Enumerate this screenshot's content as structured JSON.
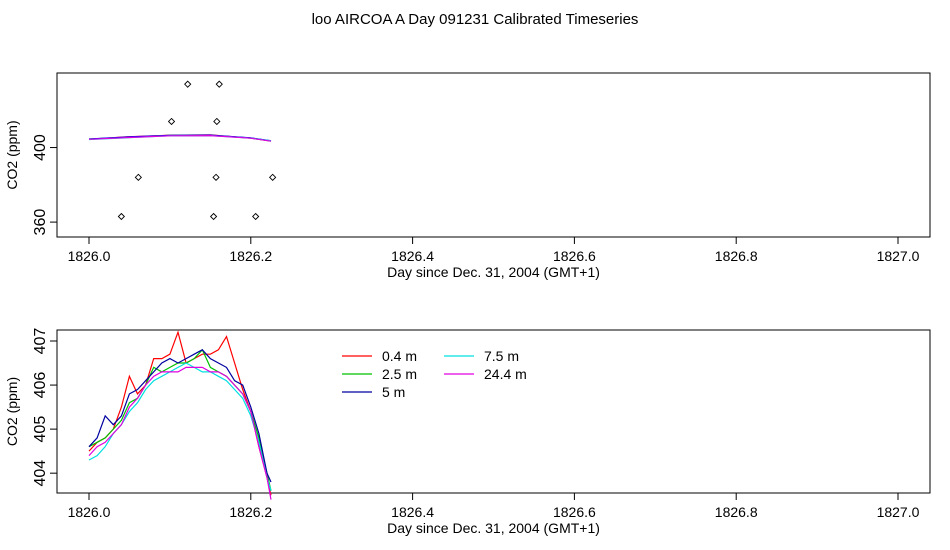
{
  "page": {
    "title": "loo AIRCOA A  Day 091231  Calibrated Timeseries"
  },
  "chart_data": [
    {
      "type": "line",
      "xlabel": "Day since Dec. 31, 2004 (GMT+1)",
      "ylabel": "CO2 (ppm)",
      "xlim": [
        1826.0,
        1827.0
      ],
      "ylim": [
        352,
        440
      ],
      "xticks": [
        "1826.0",
        "1826.2",
        "1826.4",
        "1826.6",
        "1826.8",
        "1827.0"
      ],
      "yticks": [
        "360",
        "400"
      ],
      "scatter_points": [
        {
          "x": 1826.122,
          "y": 434
        },
        {
          "x": 1826.161,
          "y": 434
        },
        {
          "x": 1826.102,
          "y": 414
        },
        {
          "x": 1826.158,
          "y": 414
        },
        {
          "x": 1826.061,
          "y": 384
        },
        {
          "x": 1826.157,
          "y": 384
        },
        {
          "x": 1826.227,
          "y": 384
        },
        {
          "x": 1826.04,
          "y": 363
        },
        {
          "x": 1826.154,
          "y": 363
        },
        {
          "x": 1826.206,
          "y": 363
        }
      ],
      "series": [
        {
          "color": "#ff0000",
          "x": [
            1826.0,
            1826.05,
            1826.1,
            1826.15,
            1826.2,
            1826.225
          ],
          "values": [
            404.5,
            405.8,
            406.6,
            406.8,
            405.0,
            403.5
          ]
        },
        {
          "color": "#00c000",
          "x": [
            1826.0,
            1826.05,
            1826.1,
            1826.15,
            1826.2,
            1826.225
          ],
          "values": [
            404.6,
            405.5,
            406.5,
            406.6,
            405.1,
            403.5
          ]
        },
        {
          "color": "#0000ff",
          "x": [
            1826.0,
            1826.05,
            1826.1,
            1826.15,
            1826.2,
            1826.225
          ],
          "values": [
            404.6,
            405.7,
            406.5,
            406.7,
            405.2,
            403.7
          ]
        },
        {
          "color": "#00e0e0",
          "x": [
            1826.0,
            1826.05,
            1826.1,
            1826.15,
            1826.2,
            1826.225
          ],
          "values": [
            404.3,
            405.3,
            406.3,
            406.4,
            405.0,
            403.6
          ]
        },
        {
          "color": "#e000e0",
          "x": [
            1826.0,
            1826.05,
            1826.1,
            1826.15,
            1826.2,
            1826.225
          ],
          "values": [
            404.4,
            405.4,
            406.3,
            406.4,
            405.0,
            403.4
          ]
        }
      ]
    },
    {
      "type": "line",
      "xlabel": "Day since Dec. 31, 2004 (GMT+1)",
      "ylabel": "CO2 (ppm)",
      "xlim": [
        1826.0,
        1827.0
      ],
      "ylim": [
        403.55,
        407.25
      ],
      "xticks": [
        "1826.0",
        "1826.2",
        "1826.4",
        "1826.6",
        "1826.8",
        "1827.0"
      ],
      "yticks": [
        "404",
        "405",
        "406",
        "407"
      ],
      "legend": {
        "position": "top-left"
      },
      "series": [
        {
          "name": "0.4 m",
          "color": "#ff0000",
          "x": [
            1826.0,
            1826.01,
            1826.02,
            1826.03,
            1826.04,
            1826.05,
            1826.06,
            1826.07,
            1826.08,
            1826.09,
            1826.1,
            1826.11,
            1826.12,
            1826.13,
            1826.14,
            1826.15,
            1826.16,
            1826.17,
            1826.18,
            1826.19,
            1826.2,
            1826.21,
            1826.22,
            1826.225
          ],
          "values": [
            404.5,
            404.7,
            404.8,
            405.0,
            405.5,
            406.2,
            405.8,
            406.0,
            406.6,
            406.6,
            406.7,
            407.2,
            406.5,
            406.6,
            406.7,
            406.7,
            406.8,
            407.1,
            406.5,
            405.9,
            405.4,
            404.6,
            403.9,
            403.5
          ]
        },
        {
          "name": "2.5 m",
          "color": "#00c000",
          "x": [
            1826.0,
            1826.01,
            1826.02,
            1826.03,
            1826.04,
            1826.05,
            1826.06,
            1826.07,
            1826.08,
            1826.09,
            1826.1,
            1826.11,
            1826.12,
            1826.13,
            1826.14,
            1826.15,
            1826.16,
            1826.17,
            1826.18,
            1826.19,
            1826.2,
            1826.21,
            1826.22,
            1826.225
          ],
          "values": [
            404.6,
            404.7,
            404.8,
            405.0,
            405.2,
            405.6,
            405.7,
            406.0,
            406.4,
            406.3,
            406.4,
            406.5,
            406.5,
            406.6,
            406.8,
            406.4,
            406.3,
            406.2,
            406.0,
            405.8,
            405.4,
            404.8,
            404.0,
            403.6
          ]
        },
        {
          "name": "5 m",
          "color": "#0000a0",
          "x": [
            1826.0,
            1826.01,
            1826.02,
            1826.03,
            1826.04,
            1826.05,
            1826.06,
            1826.07,
            1826.08,
            1826.09,
            1826.1,
            1826.11,
            1826.12,
            1826.13,
            1826.14,
            1826.15,
            1826.16,
            1826.17,
            1826.18,
            1826.19,
            1826.2,
            1826.21,
            1826.22,
            1826.225
          ],
          "values": [
            404.6,
            404.8,
            405.3,
            405.1,
            405.3,
            405.8,
            405.9,
            406.1,
            406.3,
            406.5,
            406.6,
            406.5,
            406.6,
            406.7,
            406.8,
            406.6,
            406.5,
            406.4,
            406.1,
            406.0,
            405.5,
            404.9,
            404.0,
            403.8
          ]
        },
        {
          "name": "7.5 m",
          "color": "#00e0e0",
          "x": [
            1826.0,
            1826.01,
            1826.02,
            1826.03,
            1826.04,
            1826.05,
            1826.06,
            1826.07,
            1826.08,
            1826.09,
            1826.1,
            1826.11,
            1826.12,
            1826.13,
            1826.14,
            1826.15,
            1826.16,
            1826.17,
            1826.18,
            1826.19,
            1826.2,
            1826.21,
            1826.22,
            1826.225
          ],
          "values": [
            404.3,
            404.4,
            404.6,
            404.9,
            405.1,
            405.4,
            405.6,
            405.9,
            406.1,
            406.2,
            406.3,
            406.4,
            406.5,
            406.4,
            406.3,
            406.3,
            406.2,
            406.1,
            405.9,
            405.7,
            405.3,
            404.7,
            403.9,
            403.6
          ]
        },
        {
          "name": "24.4 m",
          "color": "#e000e0",
          "x": [
            1826.0,
            1826.01,
            1826.02,
            1826.03,
            1826.04,
            1826.05,
            1826.06,
            1826.07,
            1826.08,
            1826.09,
            1826.1,
            1826.11,
            1826.12,
            1826.13,
            1826.14,
            1826.15,
            1826.16,
            1826.17,
            1826.18,
            1826.19,
            1826.2,
            1826.21,
            1826.22,
            1826.225
          ],
          "values": [
            404.4,
            404.6,
            404.7,
            404.9,
            405.1,
            405.5,
            405.7,
            406.0,
            406.2,
            406.3,
            406.3,
            406.3,
            406.4,
            406.4,
            406.4,
            406.3,
            406.3,
            406.2,
            406.0,
            405.8,
            405.4,
            404.6,
            403.9,
            403.4
          ]
        }
      ]
    }
  ]
}
